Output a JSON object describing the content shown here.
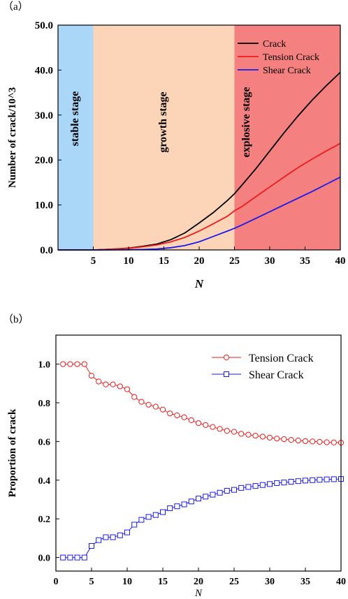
{
  "chart_data": [
    {
      "panel_label": "（a）",
      "type": "line",
      "title": "",
      "xlabel": "N",
      "ylabel": "Number of crack/10^3",
      "xlim": [
        0,
        40
      ],
      "ylim": [
        0,
        50
      ],
      "xticks": [
        "5",
        "10",
        "15",
        "20",
        "25",
        "30",
        "35",
        "40"
      ],
      "yticks": [
        "0.0",
        "10.0",
        "20.0",
        "30.0",
        "40.0",
        "50.0"
      ],
      "legend_position": "top-right",
      "stages": [
        {
          "label": "stable stage",
          "x_start": 0,
          "x_end": 5,
          "color": "#aad6f7"
        },
        {
          "label": "growth  stage",
          "x_start": 5,
          "x_end": 25,
          "color": "#fcd5b8"
        },
        {
          "label": "explosive stage",
          "x_start": 25,
          "x_end": 40,
          "color": "#f48080"
        }
      ],
      "x": [
        0,
        5,
        6,
        8,
        10,
        12,
        14,
        16,
        18,
        20,
        22,
        24,
        25,
        26,
        28,
        30,
        32,
        34,
        36,
        38,
        40
      ],
      "series": [
        {
          "name": "Crack",
          "color": "#000000",
          "values": [
            0,
            0,
            0.05,
            0.2,
            0.4,
            0.8,
            1.3,
            2.3,
            3.8,
            6.0,
            8.3,
            11.0,
            12.5,
            14.3,
            18.0,
            22.0,
            26.0,
            29.8,
            33.3,
            36.5,
            39.5
          ]
        },
        {
          "name": "Tension Crack",
          "color": "#ee1c1c",
          "values": [
            0,
            0,
            0.05,
            0.18,
            0.35,
            0.7,
            1.1,
            1.8,
            2.8,
            4.2,
            5.8,
            7.5,
            8.7,
            9.6,
            11.8,
            14.0,
            16.2,
            18.3,
            20.2,
            22.0,
            23.7
          ]
        },
        {
          "name": "Shear   Crack",
          "color": "#1a1aee",
          "values": [
            0,
            0,
            0,
            0.02,
            0.05,
            0.1,
            0.2,
            0.5,
            1.0,
            1.8,
            3.0,
            4.2,
            4.8,
            5.5,
            7.0,
            8.5,
            10.0,
            11.5,
            13.0,
            14.6,
            16.2
          ]
        }
      ]
    },
    {
      "panel_label": "（b）",
      "type": "line",
      "title": "",
      "xlabel": "N",
      "ylabel": "Proportion of crack",
      "xlim": [
        0,
        40
      ],
      "ylim": [
        -0.07,
        1.15
      ],
      "xticks": [
        "0",
        "5",
        "10",
        "15",
        "20",
        "25",
        "30",
        "35",
        "40"
      ],
      "yticks": [
        "0.0",
        "0.2",
        "0.4",
        "0.6",
        "0.8",
        "1.0"
      ],
      "legend_position": "top-right",
      "x": [
        1,
        2,
        3,
        4,
        5,
        6,
        7,
        8,
        9,
        10,
        11,
        12,
        13,
        14,
        15,
        16,
        17,
        18,
        19,
        20,
        21,
        22,
        23,
        24,
        25,
        26,
        27,
        28,
        29,
        30,
        31,
        32,
        33,
        34,
        35,
        36,
        37,
        38,
        39,
        40
      ],
      "series": [
        {
          "name": "Tension Crack",
          "color": "#ee1c1c",
          "marker": "circle",
          "values": [
            1.0,
            1.0,
            1.0,
            1.0,
            0.94,
            0.91,
            0.895,
            0.895,
            0.885,
            0.87,
            0.83,
            0.805,
            0.79,
            0.78,
            0.765,
            0.745,
            0.735,
            0.725,
            0.71,
            0.695,
            0.685,
            0.675,
            0.665,
            0.655,
            0.65,
            0.64,
            0.635,
            0.63,
            0.625,
            0.62,
            0.615,
            0.612,
            0.608,
            0.605,
            0.602,
            0.6,
            0.598,
            0.596,
            0.595,
            0.594
          ]
        },
        {
          "name": "Shear   Crack",
          "color": "#1a1aee",
          "marker": "square",
          "values": [
            0.0,
            0.0,
            0.0,
            0.0,
            0.06,
            0.09,
            0.105,
            0.105,
            0.115,
            0.13,
            0.17,
            0.195,
            0.21,
            0.22,
            0.235,
            0.255,
            0.265,
            0.275,
            0.29,
            0.305,
            0.315,
            0.325,
            0.335,
            0.345,
            0.35,
            0.36,
            0.365,
            0.37,
            0.375,
            0.38,
            0.385,
            0.388,
            0.392,
            0.395,
            0.398,
            0.4,
            0.402,
            0.404,
            0.405,
            0.406
          ]
        }
      ]
    }
  ]
}
